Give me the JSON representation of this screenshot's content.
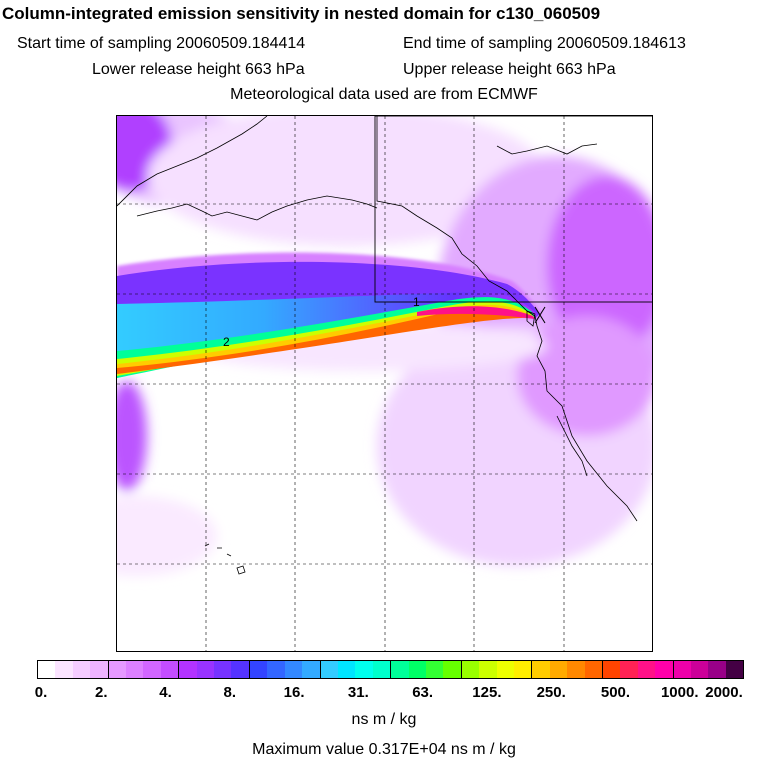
{
  "header": {
    "title": "Column-integrated emission sensitivity in nested domain for c130_060509",
    "start_time": "Start time of sampling 20060509.184414",
    "end_time": "End time of sampling 20060509.184613",
    "lower_height": "Lower release height  663 hPa",
    "upper_height": "Upper release height  663 hPa",
    "met_data": "Meteorological data used are from ECMWF"
  },
  "map": {
    "contour_labels": [
      "1",
      "2"
    ],
    "plume_colors": [
      "#cc66ff",
      "#6633ff",
      "#00ccff",
      "#00ff99",
      "#ccff00",
      "#ffcc00",
      "#ff6600"
    ]
  },
  "colorbar": {
    "colors": [
      "#ffffff",
      "#fbe4ff",
      "#f5ccff",
      "#eeb3ff",
      "#e699ff",
      "#dd80ff",
      "#d266ff",
      "#c44dff",
      "#b333ff",
      "#9933ff",
      "#7733ff",
      "#5533ff",
      "#3344ff",
      "#3366ff",
      "#3388ff",
      "#33aaff",
      "#33ccff",
      "#00e5ff",
      "#00ffee",
      "#00ffcc",
      "#00ff99",
      "#00ff66",
      "#33ff33",
      "#66ff00",
      "#99ff00",
      "#ccff00",
      "#eeff00",
      "#ffee00",
      "#ffcc00",
      "#ffaa00",
      "#ff8800",
      "#ff6600",
      "#ff4400",
      "#ff2255",
      "#ff1188",
      "#ff00aa",
      "#ee00aa",
      "#cc0099",
      "#990088",
      "#440044"
    ],
    "tick_labels": [
      "0.",
      "2.",
      "4.",
      "8.",
      "16.",
      "31.",
      "63.",
      "125.",
      "250.",
      "500.",
      "1000.",
      "2000."
    ],
    "unit": "ns m / kg",
    "max_value": "Maximum value  0.317E+04 ns m / kg"
  }
}
